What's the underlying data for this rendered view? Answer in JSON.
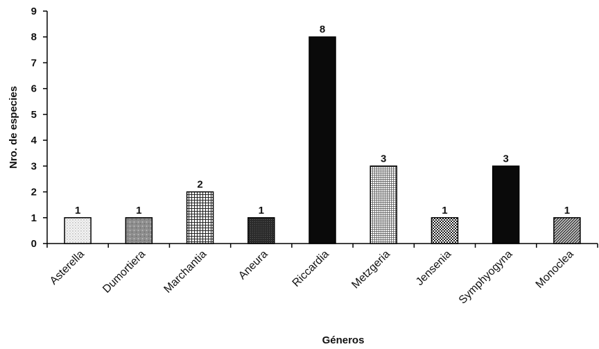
{
  "chart_data": {
    "type": "bar",
    "title": "",
    "xlabel": "Géneros",
    "ylabel": "Nro. de especies",
    "ylim": [
      0,
      9
    ],
    "yticks": [
      0,
      1,
      2,
      3,
      4,
      5,
      6,
      7,
      8,
      9
    ],
    "grid": false,
    "categories": [
      "Asterella",
      "Dumortiera",
      "Marchantia",
      "Aneura",
      "Riccardia",
      "Metzgeria",
      "Jensenia",
      "Symphyogyna",
      "Monoclea"
    ],
    "values": [
      1,
      1,
      2,
      1,
      8,
      3,
      1,
      3,
      1
    ],
    "data_labels": [
      "1",
      "1",
      "2",
      "1",
      "8",
      "3",
      "1",
      "3",
      "1"
    ],
    "bar_fills": [
      "dots-light",
      "gray-mottled",
      "grid",
      "dark-dots",
      "solid-black",
      "fine-grid",
      "checker",
      "solid-black",
      "diagonal"
    ]
  }
}
